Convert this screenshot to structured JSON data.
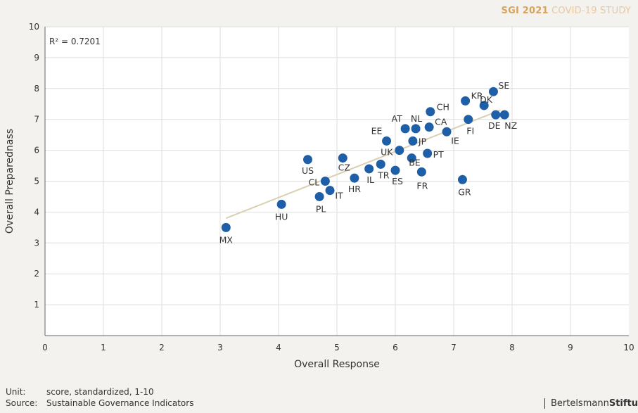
{
  "header": {
    "series_label": "SGI 2021",
    "study_label": "COVID-19 STUDY"
  },
  "chart_data": {
    "type": "scatter",
    "xlabel": "Overall Response",
    "ylabel": "Overall Preparednass",
    "xlim": [
      0,
      10
    ],
    "ylim": [
      0,
      10
    ],
    "xticks": [
      0,
      1,
      2,
      3,
      4,
      5,
      6,
      7,
      8,
      9,
      10
    ],
    "yticks": [
      1,
      2,
      3,
      4,
      5,
      6,
      7,
      8,
      9,
      10
    ],
    "grid": true,
    "annotation": "R² = 0.7201",
    "trendline": {
      "x": [
        3.1,
        7.8
      ],
      "y": [
        3.8,
        7.3
      ]
    },
    "marker_color": "#1f5fa8",
    "trend_color": "#d9cfb2",
    "points": [
      {
        "label": "MX",
        "x": 3.1,
        "y": 3.5
      },
      {
        "label": "HU",
        "x": 4.05,
        "y": 4.25
      },
      {
        "label": "US",
        "x": 4.5,
        "y": 5.7
      },
      {
        "label": "PL",
        "x": 4.7,
        "y": 4.5
      },
      {
        "label": "CL",
        "x": 4.8,
        "y": 5.0
      },
      {
        "label": "IT",
        "x": 4.88,
        "y": 4.7
      },
      {
        "label": "CZ",
        "x": 5.1,
        "y": 5.75
      },
      {
        "label": "HR",
        "x": 5.3,
        "y": 5.1
      },
      {
        "label": "IL",
        "x": 5.55,
        "y": 5.4
      },
      {
        "label": "TR",
        "x": 5.75,
        "y": 5.55
      },
      {
        "label": "EE",
        "x": 5.85,
        "y": 6.3
      },
      {
        "label": "ES",
        "x": 6.0,
        "y": 5.35
      },
      {
        "label": "UK",
        "x": 6.07,
        "y": 6.0
      },
      {
        "label": "AT",
        "x": 6.17,
        "y": 6.7
      },
      {
        "label": "BE",
        "x": 6.28,
        "y": 5.75
      },
      {
        "label": "JP",
        "x": 6.3,
        "y": 6.3
      },
      {
        "label": "NL",
        "x": 6.35,
        "y": 6.7
      },
      {
        "label": "FR",
        "x": 6.45,
        "y": 5.3
      },
      {
        "label": "PT",
        "x": 6.55,
        "y": 5.9
      },
      {
        "label": "CA",
        "x": 6.58,
        "y": 6.75
      },
      {
        "label": "CH",
        "x": 6.6,
        "y": 7.25
      },
      {
        "label": "IE",
        "x": 6.88,
        "y": 6.6
      },
      {
        "label": "GR",
        "x": 7.15,
        "y": 5.05
      },
      {
        "label": "KR",
        "x": 7.2,
        "y": 7.6
      },
      {
        "label": "FI",
        "x": 7.25,
        "y": 7.0
      },
      {
        "label": "DK",
        "x": 7.52,
        "y": 7.45
      },
      {
        "label": "SE",
        "x": 7.68,
        "y": 7.9
      },
      {
        "label": "DE",
        "x": 7.72,
        "y": 7.15
      },
      {
        "label": "NZ",
        "x": 7.87,
        "y": 7.15
      }
    ]
  },
  "footer": {
    "unit_key": "Unit:",
    "unit_value": "score, standardized, 1-10",
    "source_key": "Source:",
    "source_value": "Sustainable Governance Indicators",
    "brand_bold": "Bertelsmann",
    "brand_rest": "Stiftu"
  }
}
